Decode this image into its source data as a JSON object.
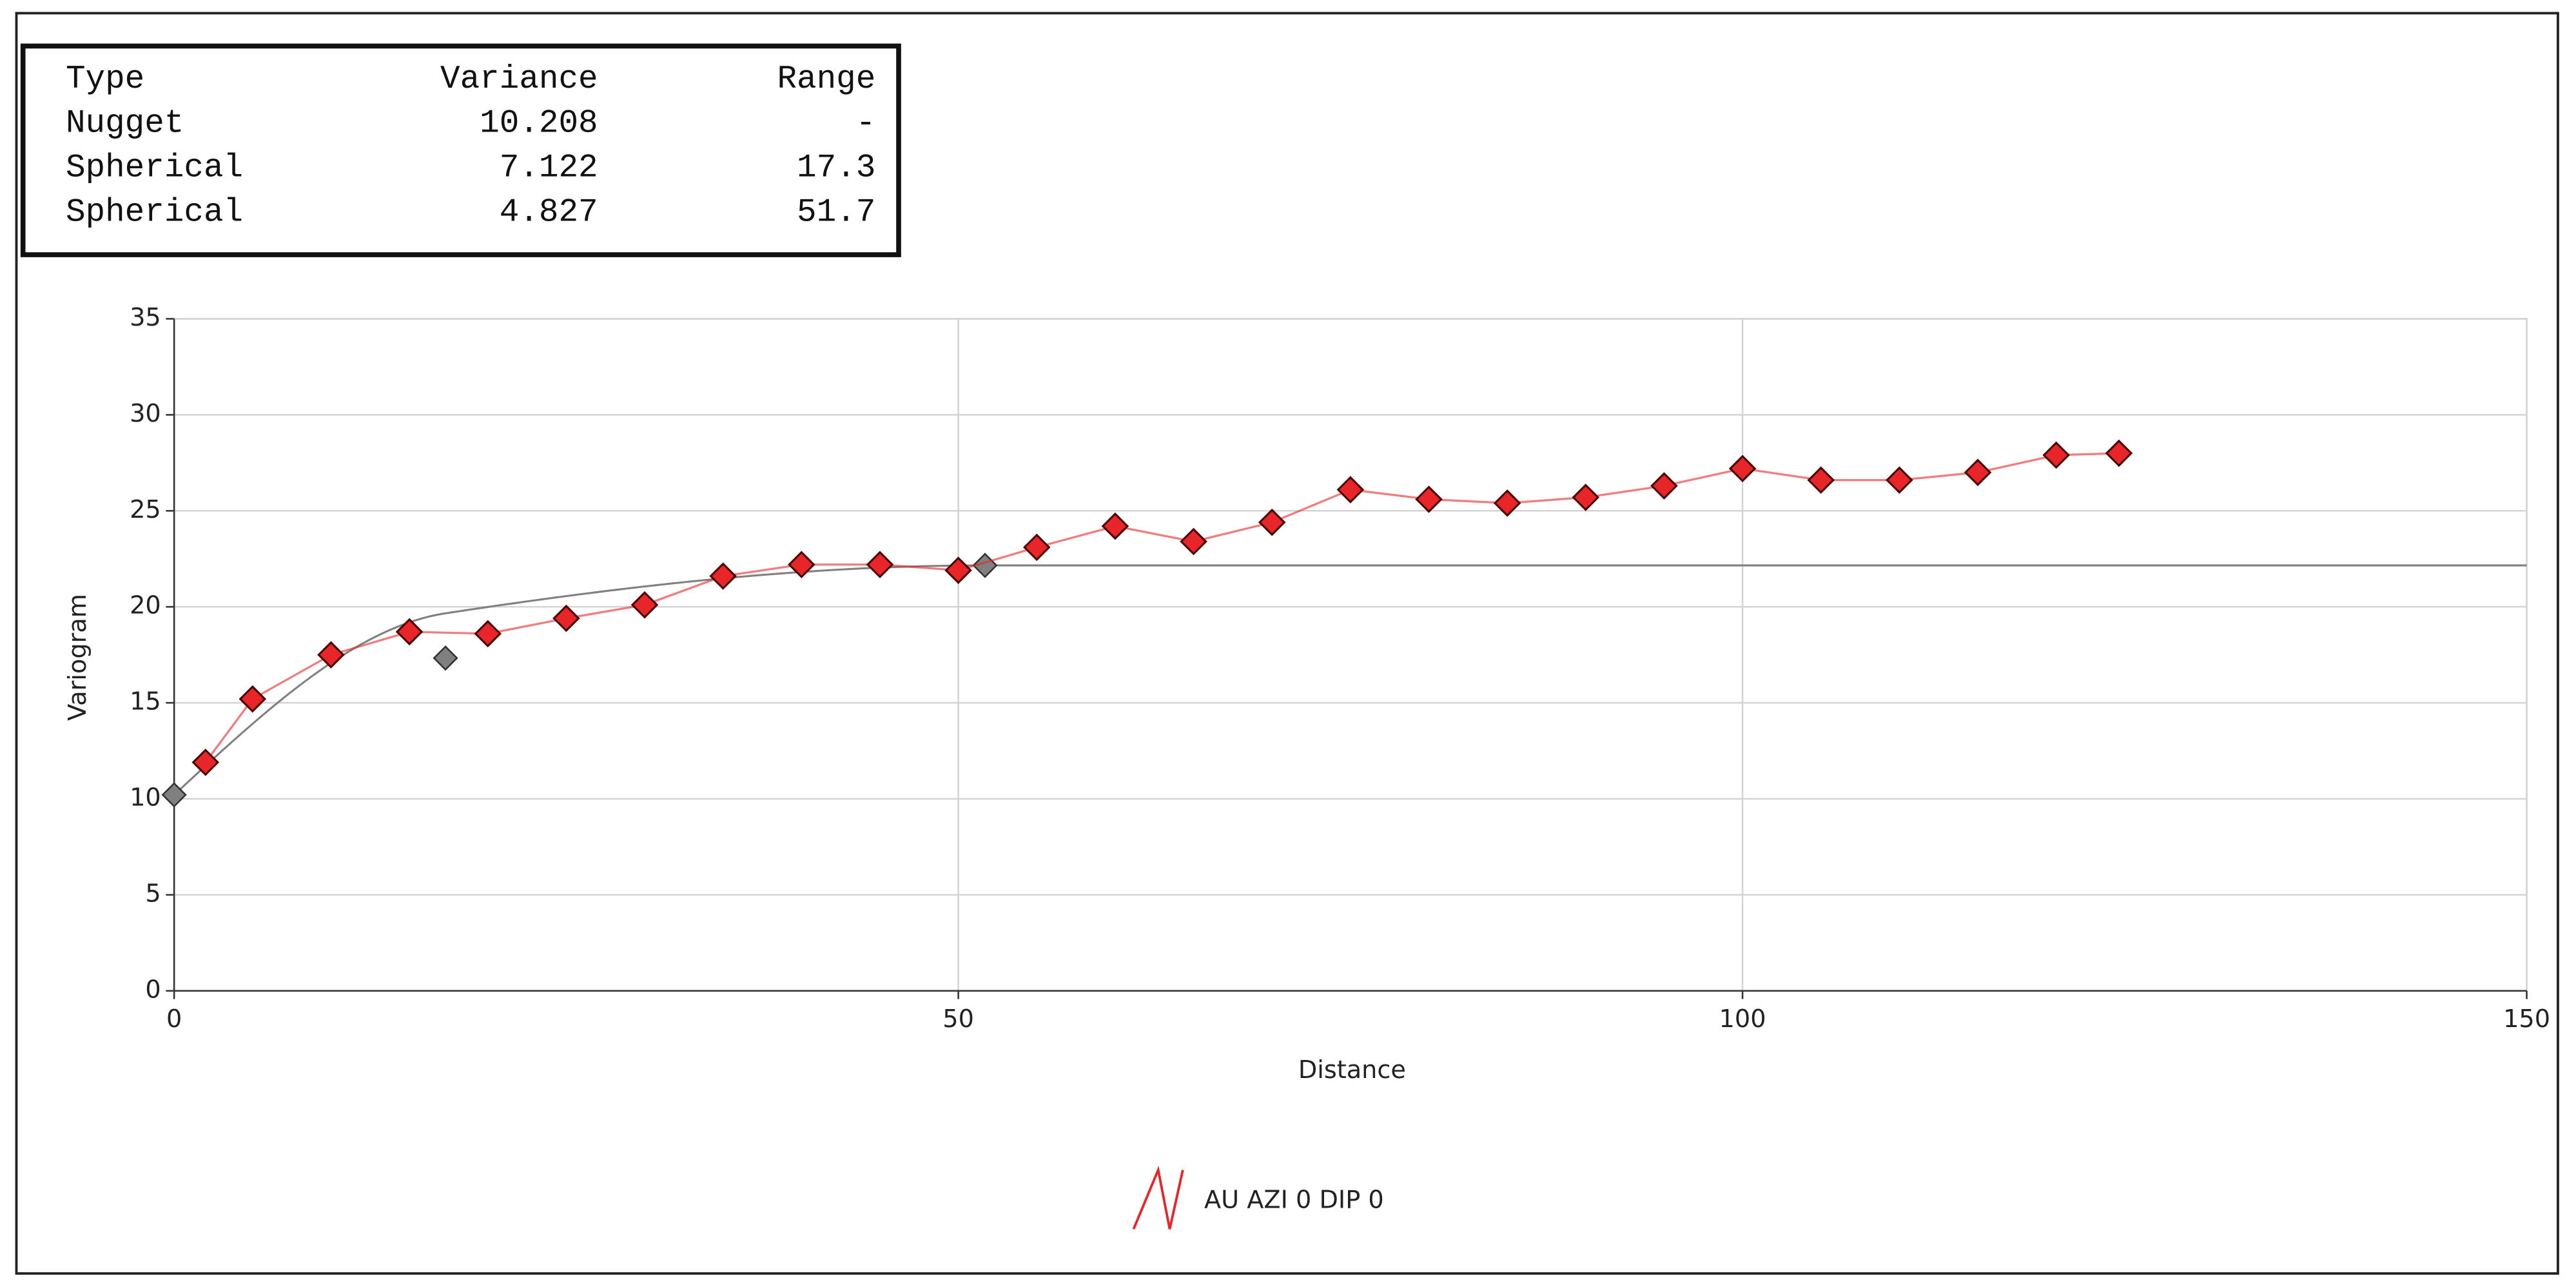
{
  "table": {
    "rows": [
      [
        "Type",
        "Variance",
        "Range"
      ],
      [
        "Nugget",
        10.208,
        "-"
      ],
      [
        "Spherical",
        7.122,
        17.3
      ],
      [
        "Spherical",
        4.827,
        51.7
      ]
    ]
  },
  "chart_data": {
    "type": "line",
    "x_label": "Distance",
    "y_label": "Variogram",
    "xlim": [
      0,
      150
    ],
    "xticks": [
      0,
      50,
      100,
      150
    ],
    "ylim": [
      0,
      35
    ],
    "yticks": [
      0,
      5,
      10,
      15,
      20,
      25,
      30,
      35
    ],
    "grid": true,
    "model_color": "#808080",
    "series": [
      {
        "name": "AU AZI 0 DIP 0",
        "color": "#e8262a",
        "x": [
          2,
          5,
          10,
          15,
          20,
          25,
          30,
          35,
          40,
          45,
          50,
          55,
          60,
          65,
          70,
          75,
          80,
          85,
          90,
          95,
          100,
          105,
          110,
          115,
          120,
          124
        ],
        "values": [
          11.9,
          15.2,
          17.5,
          18.7,
          18.6,
          19.4,
          20.1,
          21.6,
          22.2,
          22.2,
          21.9,
          23.1,
          24.2,
          23.4,
          24.4,
          26.1,
          25.6,
          25.4,
          25.7,
          26.3,
          27.2,
          26.6,
          26.6,
          27.0,
          27.9,
          28.0
        ]
      }
    ]
  }
}
